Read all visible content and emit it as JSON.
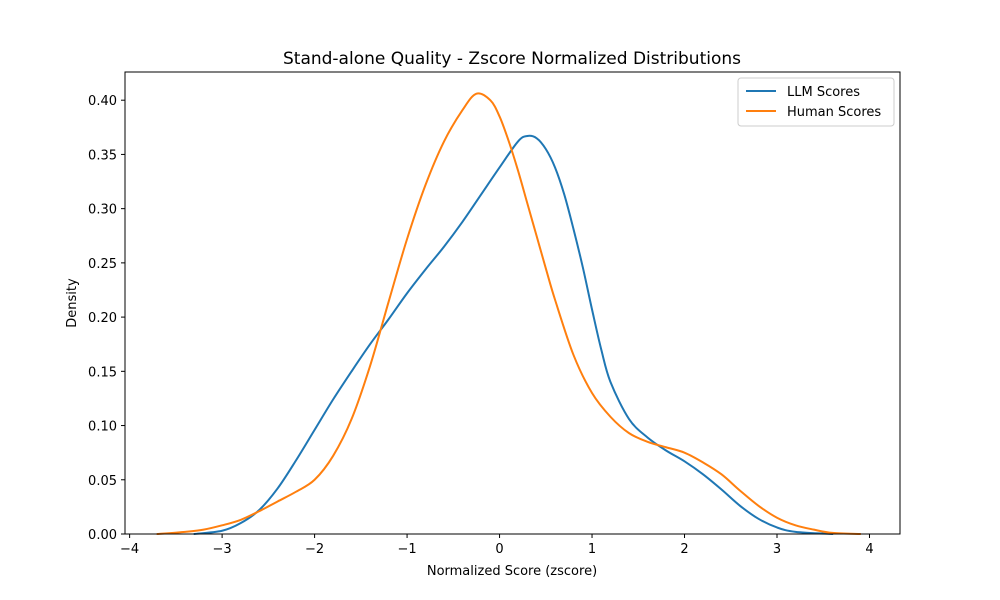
{
  "chart_data": {
    "type": "line",
    "title": "Stand-alone Quality - Zscore Normalized Distributions",
    "xlabel": "Normalized Score (zscore)",
    "ylabel": "Density",
    "xlim": [
      -4.05,
      4.33
    ],
    "ylim": [
      0,
      0.426
    ],
    "xticks": [
      -4,
      -3,
      -2,
      -1,
      0,
      1,
      2,
      3,
      4
    ],
    "xtick_labels": [
      "−4",
      "−3",
      "−2",
      "−1",
      "0",
      "1",
      "2",
      "3",
      "4"
    ],
    "yticks": [
      0.0,
      0.05,
      0.1,
      0.15,
      0.2,
      0.25,
      0.3,
      0.35,
      0.4
    ],
    "ytick_labels": [
      "0.00",
      "0.05",
      "0.10",
      "0.15",
      "0.20",
      "0.25",
      "0.30",
      "0.35",
      "0.40"
    ],
    "grid": false,
    "legend_position": "top-right",
    "series": [
      {
        "name": "LLM Scores",
        "color": "#1f77b4",
        "points": [
          [
            -3.3,
            0.0
          ],
          [
            -3.0,
            0.003
          ],
          [
            -2.8,
            0.01
          ],
          [
            -2.6,
            0.022
          ],
          [
            -2.4,
            0.042
          ],
          [
            -2.2,
            0.068
          ],
          [
            -2.0,
            0.096
          ],
          [
            -1.8,
            0.124
          ],
          [
            -1.6,
            0.15
          ],
          [
            -1.4,
            0.175
          ],
          [
            -1.2,
            0.198
          ],
          [
            -1.0,
            0.222
          ],
          [
            -0.8,
            0.244
          ],
          [
            -0.6,
            0.265
          ],
          [
            -0.4,
            0.288
          ],
          [
            -0.2,
            0.313
          ],
          [
            0.0,
            0.338
          ],
          [
            0.2,
            0.362
          ],
          [
            0.3,
            0.367
          ],
          [
            0.4,
            0.365
          ],
          [
            0.5,
            0.355
          ],
          [
            0.6,
            0.338
          ],
          [
            0.7,
            0.313
          ],
          [
            0.8,
            0.281
          ],
          [
            0.9,
            0.246
          ],
          [
            1.0,
            0.207
          ],
          [
            1.1,
            0.17
          ],
          [
            1.2,
            0.14
          ],
          [
            1.4,
            0.106
          ],
          [
            1.6,
            0.089
          ],
          [
            1.8,
            0.077
          ],
          [
            2.0,
            0.067
          ],
          [
            2.2,
            0.055
          ],
          [
            2.4,
            0.041
          ],
          [
            2.6,
            0.026
          ],
          [
            2.8,
            0.014
          ],
          [
            3.0,
            0.006
          ],
          [
            3.2,
            0.002
          ],
          [
            3.6,
            0.0
          ]
        ]
      },
      {
        "name": "Human Scores",
        "color": "#ff7f0e",
        "points": [
          [
            -3.7,
            0.0
          ],
          [
            -3.4,
            0.002
          ],
          [
            -3.2,
            0.004
          ],
          [
            -3.0,
            0.008
          ],
          [
            -2.8,
            0.013
          ],
          [
            -2.6,
            0.021
          ],
          [
            -2.4,
            0.03
          ],
          [
            -2.2,
            0.039
          ],
          [
            -2.0,
            0.05
          ],
          [
            -1.8,
            0.072
          ],
          [
            -1.6,
            0.106
          ],
          [
            -1.4,
            0.155
          ],
          [
            -1.2,
            0.214
          ],
          [
            -1.0,
            0.272
          ],
          [
            -0.8,
            0.322
          ],
          [
            -0.6,
            0.362
          ],
          [
            -0.4,
            0.391
          ],
          [
            -0.25,
            0.406
          ],
          [
            -0.1,
            0.4
          ],
          [
            0.0,
            0.385
          ],
          [
            0.1,
            0.362
          ],
          [
            0.2,
            0.335
          ],
          [
            0.3,
            0.305
          ],
          [
            0.4,
            0.275
          ],
          [
            0.5,
            0.245
          ],
          [
            0.6,
            0.216
          ],
          [
            0.8,
            0.165
          ],
          [
            1.0,
            0.13
          ],
          [
            1.2,
            0.108
          ],
          [
            1.4,
            0.093
          ],
          [
            1.6,
            0.085
          ],
          [
            1.8,
            0.08
          ],
          [
            2.0,
            0.075
          ],
          [
            2.2,
            0.066
          ],
          [
            2.4,
            0.055
          ],
          [
            2.6,
            0.04
          ],
          [
            2.8,
            0.026
          ],
          [
            3.0,
            0.015
          ],
          [
            3.2,
            0.008
          ],
          [
            3.4,
            0.004
          ],
          [
            3.6,
            0.001
          ],
          [
            3.9,
            0.0
          ]
        ]
      }
    ]
  }
}
